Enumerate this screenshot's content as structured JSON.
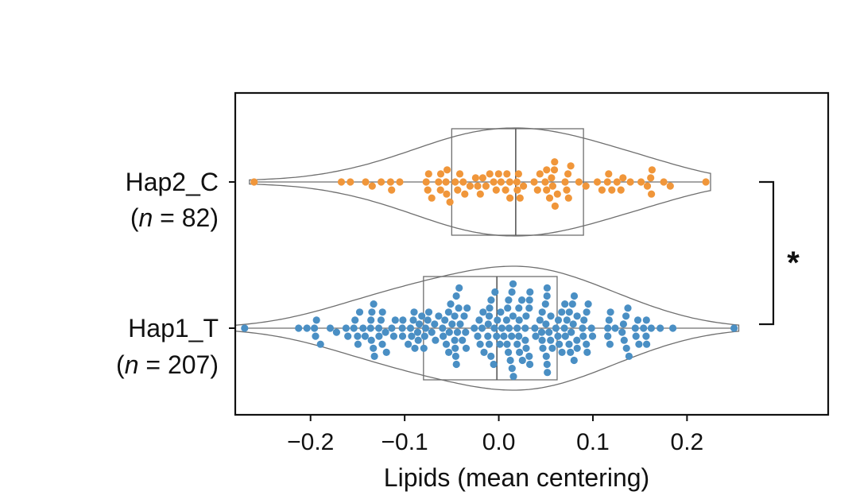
{
  "chart_data": {
    "type": "violin-swarm",
    "orientation": "horizontal",
    "xlabel": "Lipids (mean centering)",
    "xlim": [
      -0.28,
      0.35
    ],
    "xticks": [
      -0.2,
      -0.1,
      0.0,
      0.1,
      0.2
    ],
    "xtick_labels": [
      "−0.2",
      "−0.1",
      "0.0",
      "0.1",
      "0.2"
    ],
    "grid": false,
    "significance": "*",
    "groups": [
      {
        "label": "Hap2_C",
        "n_label": "(n = 82)",
        "n": 82,
        "color": "#F0963A",
        "min": -0.26,
        "q1": -0.05,
        "median": 0.018,
        "q3": 0.09,
        "max": 0.22,
        "violin_min": -0.265,
        "violin_max": 0.225
      },
      {
        "label": "Hap1_T",
        "n_label": "(n = 207)",
        "n": 207,
        "color": "#4A8FC4",
        "min": -0.27,
        "q1": -0.08,
        "median": -0.002,
        "q3": 0.062,
        "max": 0.25,
        "violin_min": -0.28,
        "violin_max": 0.255
      }
    ]
  }
}
